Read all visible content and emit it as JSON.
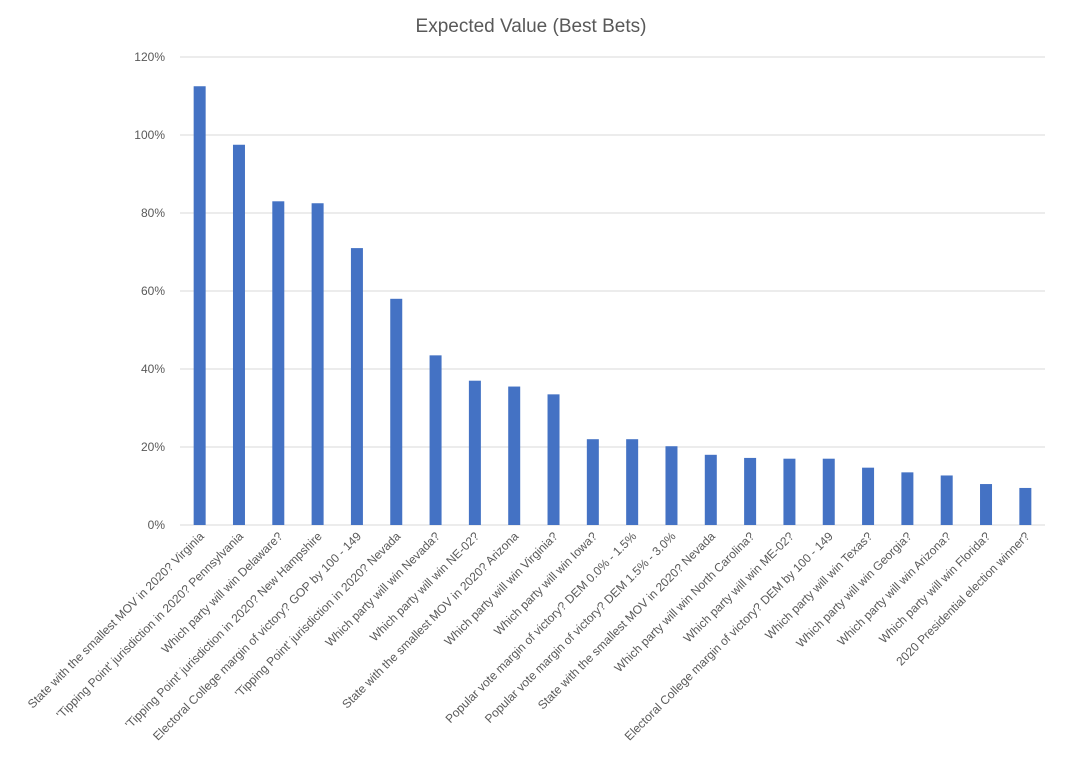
{
  "chart_data": {
    "type": "bar",
    "title": "Expected Value (Best Bets)",
    "xlabel": "",
    "ylabel": "",
    "ylim": [
      0,
      1.2
    ],
    "yticks": [
      "0%",
      "20%",
      "40%",
      "60%",
      "80%",
      "100%",
      "120%"
    ],
    "grid": true,
    "legend": "none",
    "bar_color": "#4472c4",
    "categories": [
      "State with the smallest MOV in 2020?  Virginia",
      "'Tipping Point' jurisdiction in 2020? Pennsylvania",
      "Which party will win Delaware?",
      "'Tipping Point' jurisdiction in 2020? New Hampshire",
      "Electoral College margin of victory? GOP by 100 - 149",
      "'Tipping Point' jurisdiction in 2020? Nevada",
      "Which party will win Nevada?",
      "Which party will win NE-02?",
      "State with the smallest MOV in 2020?  Arizona",
      "Which party will win Virginia?",
      "Which party will win Iowa?",
      "Popular vote margin of victory? DEM 0.0% - 1.5%",
      "Popular vote margin of victory? DEM 1.5% - 3.0%",
      "State with the smallest MOV in 2020?  Nevada",
      "Which party will win North Carolina?",
      "Which party will win ME-02?",
      "Electoral College margin of victory? DEM by 100 - 149",
      "Which party will win Texas?",
      "Which party will win Georgia?",
      "Which party will win Arizona?",
      "Which party will win Florida?",
      "2020 Presidential election winner?"
    ],
    "values": [
      1.125,
      0.975,
      0.83,
      0.825,
      0.71,
      0.58,
      0.435,
      0.37,
      0.355,
      0.335,
      0.22,
      0.22,
      0.202,
      0.18,
      0.172,
      0.17,
      0.17,
      0.147,
      0.135,
      0.127,
      0.105,
      0.095
    ]
  }
}
